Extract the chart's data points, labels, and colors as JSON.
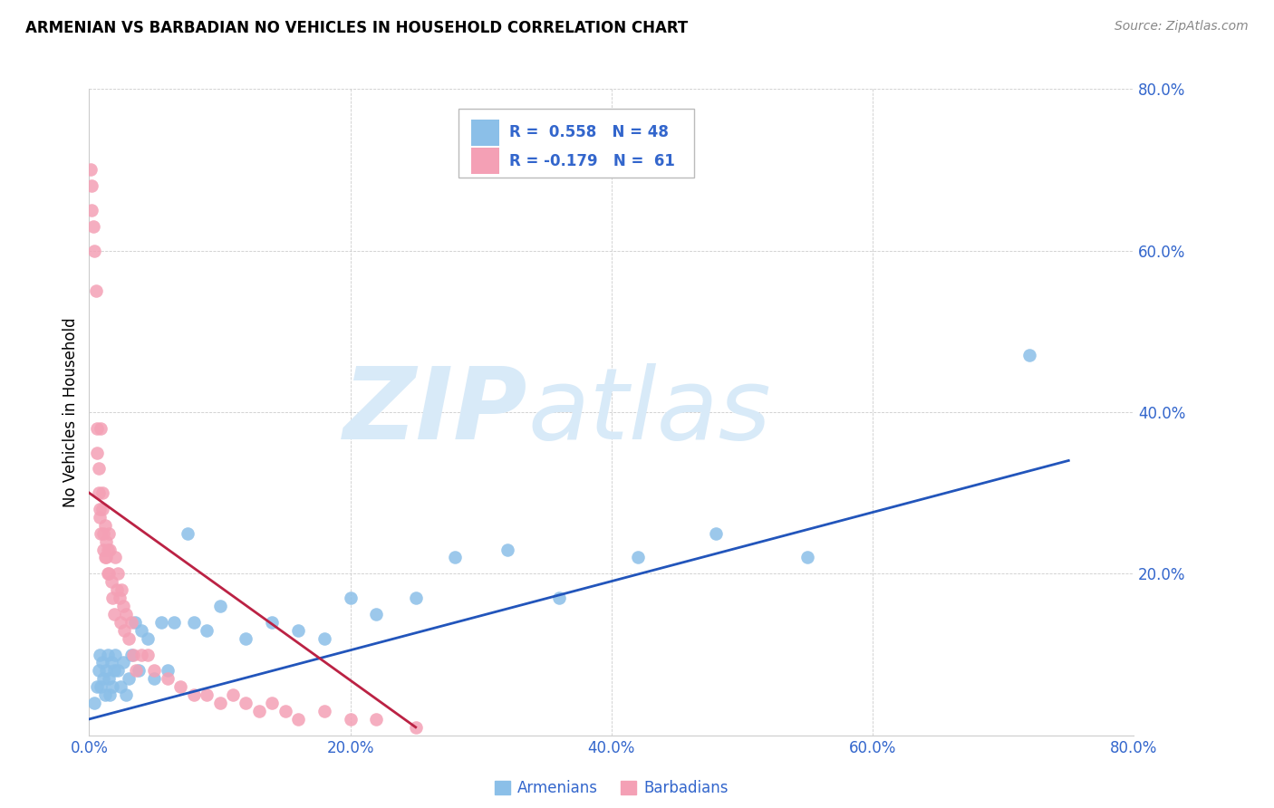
{
  "title": "ARMENIAN VS BARBADIAN NO VEHICLES IN HOUSEHOLD CORRELATION CHART",
  "source": "Source: ZipAtlas.com",
  "ylabel": "No Vehicles in Household",
  "xlim": [
    0.0,
    0.8
  ],
  "ylim": [
    0.0,
    0.8
  ],
  "xticks": [
    0.0,
    0.2,
    0.4,
    0.6,
    0.8
  ],
  "yticks": [
    0.0,
    0.2,
    0.4,
    0.6,
    0.8
  ],
  "xticklabels": [
    "0.0%",
    "20.0%",
    "40.0%",
    "60.0%",
    "80.0%"
  ],
  "yticklabels_right": [
    "",
    "20.0%",
    "40.0%",
    "60.0%",
    "80.0%"
  ],
  "armenian_color": "#8bbfe8",
  "barbadian_color": "#f4a0b5",
  "armenian_line_color": "#2255bb",
  "barbadian_line_color": "#bb2244",
  "watermark_zip": "ZIP",
  "watermark_atlas": "atlas",
  "watermark_color": "#d8eaf8",
  "armenian_x": [
    0.004,
    0.006,
    0.007,
    0.008,
    0.009,
    0.01,
    0.011,
    0.012,
    0.013,
    0.014,
    0.015,
    0.016,
    0.017,
    0.018,
    0.019,
    0.02,
    0.022,
    0.024,
    0.026,
    0.028,
    0.03,
    0.032,
    0.035,
    0.038,
    0.04,
    0.045,
    0.05,
    0.055,
    0.06,
    0.065,
    0.075,
    0.08,
    0.09,
    0.1,
    0.12,
    0.14,
    0.16,
    0.18,
    0.2,
    0.22,
    0.25,
    0.28,
    0.32,
    0.36,
    0.42,
    0.48,
    0.55,
    0.72
  ],
  "armenian_y": [
    0.04,
    0.06,
    0.08,
    0.1,
    0.06,
    0.09,
    0.07,
    0.05,
    0.08,
    0.1,
    0.07,
    0.05,
    0.09,
    0.06,
    0.08,
    0.1,
    0.08,
    0.06,
    0.09,
    0.05,
    0.07,
    0.1,
    0.14,
    0.08,
    0.13,
    0.12,
    0.07,
    0.14,
    0.08,
    0.14,
    0.25,
    0.14,
    0.13,
    0.16,
    0.12,
    0.14,
    0.13,
    0.12,
    0.17,
    0.15,
    0.17,
    0.22,
    0.23,
    0.17,
    0.22,
    0.25,
    0.22,
    0.47
  ],
  "barbadian_x": [
    0.001,
    0.002,
    0.002,
    0.003,
    0.004,
    0.005,
    0.006,
    0.006,
    0.007,
    0.007,
    0.008,
    0.008,
    0.009,
    0.009,
    0.01,
    0.01,
    0.011,
    0.011,
    0.012,
    0.012,
    0.013,
    0.013,
    0.014,
    0.014,
    0.015,
    0.015,
    0.016,
    0.017,
    0.018,
    0.019,
    0.02,
    0.021,
    0.022,
    0.023,
    0.024,
    0.025,
    0.026,
    0.027,
    0.028,
    0.03,
    0.032,
    0.034,
    0.036,
    0.04,
    0.045,
    0.05,
    0.06,
    0.07,
    0.08,
    0.09,
    0.1,
    0.11,
    0.12,
    0.13,
    0.14,
    0.15,
    0.16,
    0.18,
    0.2,
    0.22,
    0.25
  ],
  "barbadian_y": [
    0.7,
    0.68,
    0.65,
    0.63,
    0.6,
    0.55,
    0.38,
    0.35,
    0.33,
    0.3,
    0.28,
    0.27,
    0.25,
    0.38,
    0.3,
    0.28,
    0.25,
    0.23,
    0.22,
    0.26,
    0.24,
    0.22,
    0.2,
    0.23,
    0.2,
    0.25,
    0.23,
    0.19,
    0.17,
    0.15,
    0.22,
    0.18,
    0.2,
    0.17,
    0.14,
    0.18,
    0.16,
    0.13,
    0.15,
    0.12,
    0.14,
    0.1,
    0.08,
    0.1,
    0.1,
    0.08,
    0.07,
    0.06,
    0.05,
    0.05,
    0.04,
    0.05,
    0.04,
    0.03,
    0.04,
    0.03,
    0.02,
    0.03,
    0.02,
    0.02,
    0.01
  ],
  "armenian_line_x": [
    0.0,
    0.75
  ],
  "armenian_line_y": [
    0.02,
    0.34
  ],
  "barbadian_line_x": [
    0.0,
    0.25
  ],
  "barbadian_line_y": [
    0.3,
    0.01
  ]
}
